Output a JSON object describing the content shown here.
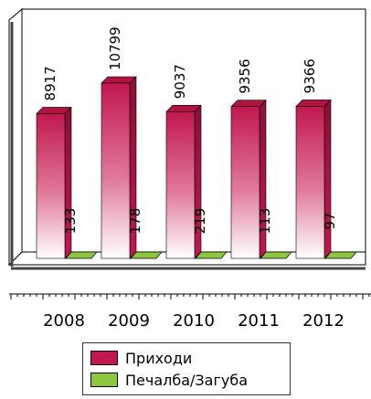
{
  "chart_data": {
    "type": "bar",
    "categories": [
      "2008",
      "2009",
      "2010",
      "2011",
      "2012"
    ],
    "series": [
      {
        "name": "Приходи",
        "values": [
          8917,
          10799,
          9037,
          9356,
          9366
        ],
        "color": "#c2184f"
      },
      {
        "name": "Печалба/Загуба",
        "values": [
          133,
          178,
          219,
          113,
          97
        ],
        "color": "#8cc63f"
      }
    ],
    "ylim": [
      0,
      12000
    ],
    "grid": false,
    "legend_position": "bottom",
    "data_labels": "vertical"
  }
}
